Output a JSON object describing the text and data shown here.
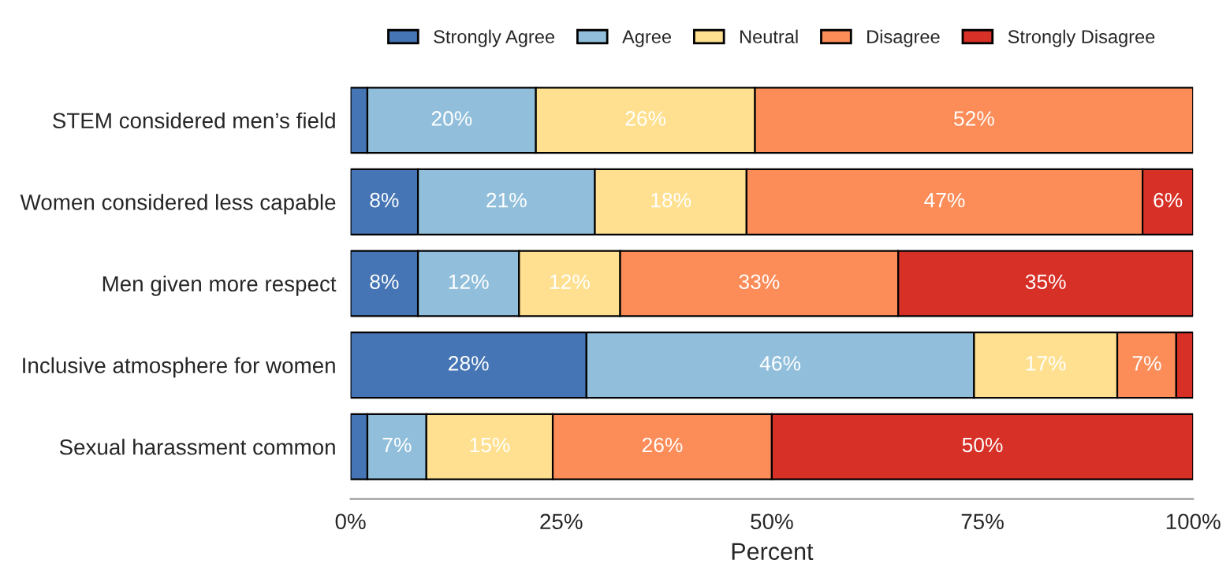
{
  "chart_data": {
    "type": "bar",
    "orientation": "horizontal",
    "stacked": true,
    "xlabel": "Percent",
    "legend": "top",
    "grid": false,
    "categories": [
      "STEM considered men’s field",
      "Women considered less capable",
      "Men given more respect",
      "Inclusive atmosphere for women",
      "Sexual harassment common"
    ],
    "xlim": [
      0,
      100
    ],
    "xticks": [
      {
        "value": 0,
        "label": "0%"
      },
      {
        "value": 25,
        "label": "25%"
      },
      {
        "value": 50,
        "label": "50%"
      },
      {
        "value": 75,
        "label": "75%"
      },
      {
        "value": 100,
        "label": "100%"
      }
    ],
    "series": [
      {
        "name": "Strongly Agree",
        "color": "#4575b4",
        "values": [
          2,
          8,
          8,
          28,
          2
        ],
        "value_labels": [
          null,
          "8%",
          "8%",
          "28%",
          null
        ]
      },
      {
        "name": "Agree",
        "color": "#91bfdb",
        "values": [
          20,
          21,
          12,
          46,
          7
        ],
        "value_labels": [
          "20%",
          "21%",
          "12%",
          "46%",
          "7%"
        ]
      },
      {
        "name": "Neutral",
        "color": "#fee090",
        "values": [
          26,
          18,
          12,
          17,
          15
        ],
        "value_labels": [
          "26%",
          "18%",
          "12%",
          "17%",
          "15%"
        ]
      },
      {
        "name": "Disagree",
        "color": "#fc8d59",
        "values": [
          52,
          47,
          33,
          7,
          26
        ],
        "value_labels": [
          "52%",
          "47%",
          "33%",
          "7%",
          "26%"
        ]
      },
      {
        "name": "Strongly Disagree",
        "color": "#d73027",
        "values": [
          null,
          6,
          35,
          2,
          50
        ],
        "value_labels": [
          null,
          "6%",
          "35%",
          null,
          "50%"
        ]
      }
    ]
  }
}
